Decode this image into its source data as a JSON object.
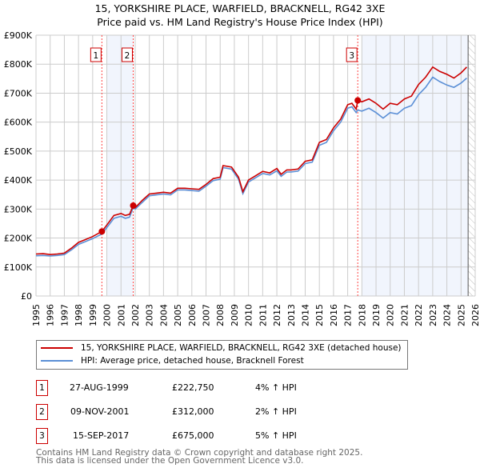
{
  "title_line1": "15, YORKSHIRE PLACE, WARFIELD, BRACKNELL, RG42 3XE",
  "title_line2": "Price paid vs. HM Land Registry's House Price Index (HPI)",
  "chart_data": {
    "type": "line",
    "xlim": [
      1995,
      2026
    ],
    "ylim": [
      0,
      900000
    ],
    "x_ticks": [
      1995,
      1996,
      1997,
      1998,
      1999,
      2000,
      2001,
      2002,
      2003,
      2004,
      2005,
      2006,
      2007,
      2008,
      2009,
      2010,
      2011,
      2012,
      2013,
      2014,
      2015,
      2016,
      2017,
      2018,
      2019,
      2020,
      2021,
      2022,
      2023,
      2024,
      2025,
      2026
    ],
    "x_tick_labels": [
      "1995",
      "1996",
      "1997",
      "1998",
      "1999",
      "2000",
      "2001",
      "2002",
      "2003",
      "2004",
      "2005",
      "2006",
      "2007",
      "2008",
      "2009",
      "2010",
      "2011",
      "2012",
      "2013",
      "2014",
      "2015",
      "2016",
      "2017",
      "2018",
      "2019",
      "2020",
      "2021",
      "2022",
      "2023",
      "2024",
      "2025",
      "2026"
    ],
    "y_ticks": [
      0,
      100000,
      200000,
      300000,
      400000,
      500000,
      600000,
      700000,
      800000,
      900000
    ],
    "y_tick_labels": [
      "£0",
      "£100K",
      "£200K",
      "£300K",
      "£400K",
      "£500K",
      "£600K",
      "£700K",
      "£800K",
      "£900K"
    ],
    "grid": true,
    "shaded_ranges": [
      [
        2000.0,
        2001.86
      ],
      [
        2018.0,
        2025.5
      ]
    ],
    "hatched_from": 2025.5,
    "series": [
      {
        "name": "15, YORKSHIRE PLACE, WARFIELD, BRACKNELL, RG42 3XE (detached house)",
        "color": "#cc0000",
        "x": [
          1995,
          1995.5,
          1996,
          1996.5,
          1997,
          1997.5,
          1998,
          1998.5,
          1999,
          1999.65,
          2000,
          2000.5,
          2001,
          2001.3,
          2001.6,
          2001.86,
          2002,
          2002.5,
          2003,
          2003.5,
          2004,
          2004.5,
          2005,
          2005.5,
          2006,
          2006.5,
          2007,
          2007.5,
          2008,
          2008.2,
          2008.8,
          2009.3,
          2009.6,
          2010,
          2010.5,
          2011,
          2011.5,
          2012,
          2012.3,
          2012.7,
          2013,
          2013.5,
          2014,
          2014.5,
          2015,
          2015.5,
          2016,
          2016.5,
          2017,
          2017.3,
          2017.6,
          2017.71,
          2018,
          2018.5,
          2019,
          2019.5,
          2020,
          2020.5,
          2021,
          2021.5,
          2022,
          2022.5,
          2023,
          2023.5,
          2024,
          2024.5,
          2025,
          2025.4
        ],
        "y": [
          145000,
          146000,
          143000,
          145000,
          148000,
          165000,
          185000,
          195000,
          205000,
          222750,
          245000,
          278000,
          285000,
          278000,
          282000,
          312000,
          305000,
          330000,
          352000,
          355000,
          358000,
          355000,
          372000,
          372000,
          370000,
          368000,
          385000,
          405000,
          410000,
          450000,
          445000,
          410000,
          360000,
          400000,
          415000,
          430000,
          425000,
          440000,
          420000,
          435000,
          435000,
          438000,
          465000,
          470000,
          530000,
          540000,
          580000,
          610000,
          660000,
          665000,
          645000,
          675000,
          670000,
          680000,
          665000,
          645000,
          665000,
          660000,
          680000,
          690000,
          730000,
          755000,
          790000,
          775000,
          765000,
          752000,
          770000,
          790000
        ]
      },
      {
        "name": "HPI: Average price, detached house, Bracknell Forest",
        "color": "#5b8fd6",
        "x": [
          1995,
          1995.5,
          1996,
          1996.5,
          1997,
          1997.5,
          1998,
          1998.5,
          1999,
          1999.65,
          2000,
          2000.5,
          2001,
          2001.3,
          2001.6,
          2001.86,
          2002,
          2002.5,
          2003,
          2003.5,
          2004,
          2004.5,
          2005,
          2005.5,
          2006,
          2006.5,
          2007,
          2007.5,
          2008,
          2008.2,
          2008.8,
          2009.3,
          2009.6,
          2010,
          2010.5,
          2011,
          2011.5,
          2012,
          2012.3,
          2012.7,
          2013,
          2013.5,
          2014,
          2014.5,
          2015,
          2015.5,
          2016,
          2016.5,
          2017,
          2017.3,
          2017.6,
          2017.71,
          2018,
          2018.5,
          2019,
          2019.5,
          2020,
          2020.5,
          2021,
          2021.5,
          2022,
          2022.5,
          2023,
          2023.5,
          2024,
          2024.5,
          2025,
          2025.4
        ],
        "y": [
          139000,
          140000,
          138000,
          140000,
          143000,
          159000,
          178000,
          188000,
          198000,
          214000,
          236000,
          268000,
          275000,
          268000,
          272000,
          305000,
          300000,
          323000,
          346000,
          349000,
          352000,
          349000,
          366000,
          366000,
          364000,
          362000,
          379000,
          398000,
          403000,
          443000,
          438000,
          403000,
          353000,
          393000,
          408000,
          423000,
          418000,
          432000,
          413000,
          428000,
          428000,
          431000,
          457000,
          462000,
          520000,
          530000,
          570000,
          600000,
          648000,
          653000,
          633000,
          642000,
          638000,
          648000,
          633000,
          614000,
          633000,
          628000,
          648000,
          657000,
          695000,
          720000,
          755000,
          740000,
          728000,
          720000,
          735000,
          752000
        ]
      }
    ],
    "sales": [
      {
        "label": "1",
        "x": 1999.65,
        "y": 222750
      },
      {
        "label": "2",
        "x": 2001.86,
        "y": 312000
      },
      {
        "label": "3",
        "x": 2017.71,
        "y": 675000
      }
    ]
  },
  "legend": {
    "property": "15, YORKSHIRE PLACE, WARFIELD, BRACKNELL, RG42 3XE (detached house)",
    "hpi": "HPI: Average price, detached house, Bracknell Forest"
  },
  "transactions": [
    {
      "num": "1",
      "date": "27-AUG-1999",
      "price": "£222,750",
      "hpi": "4% ↑ HPI"
    },
    {
      "num": "2",
      "date": "09-NOV-2001",
      "price": "£312,000",
      "hpi": "2% ↑ HPI"
    },
    {
      "num": "3",
      "date": "15-SEP-2017",
      "price": "£675,000",
      "hpi": "5% ↑ HPI"
    }
  ],
  "footer_line1": "Contains HM Land Registry data © Crown copyright and database right 2025.",
  "footer_line2": "This data is licensed under the Open Government Licence v3.0."
}
